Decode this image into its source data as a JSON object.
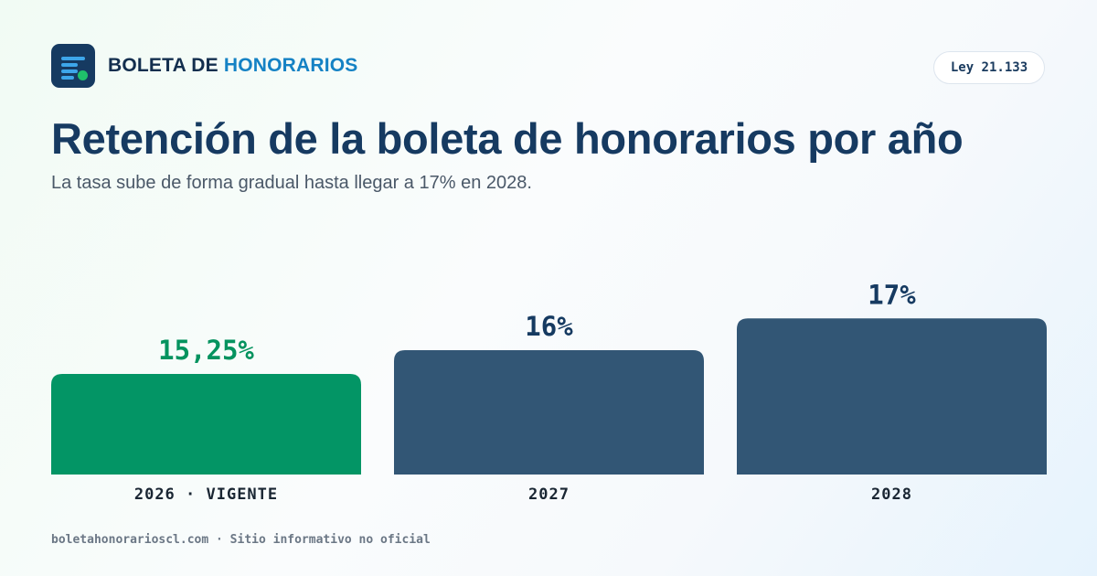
{
  "brand": {
    "prefix": "BOLETA DE",
    "accent": "HONORARIOS",
    "icon": "document-lines-icon"
  },
  "badge": "Ley 21.133",
  "chart_data": {
    "type": "bar",
    "title": "Retención de la boleta de honorarios por año",
    "subtitle": "La tasa sube de forma gradual hasta llegar a 17% en 2028.",
    "categories": [
      "2026 · VIGENTE",
      "2027",
      "2028"
    ],
    "values": [
      15.25,
      16,
      17
    ],
    "value_labels": [
      "15,25%",
      "16%",
      "17%"
    ],
    "colors": [
      "#039565",
      "#325675",
      "#325675"
    ],
    "label_colors": [
      "#05935f",
      "#163a61",
      "#163a61"
    ],
    "grid": false,
    "legend": "none"
  },
  "footer": "boletahonorarioscl.com · Sitio informativo no oficial"
}
